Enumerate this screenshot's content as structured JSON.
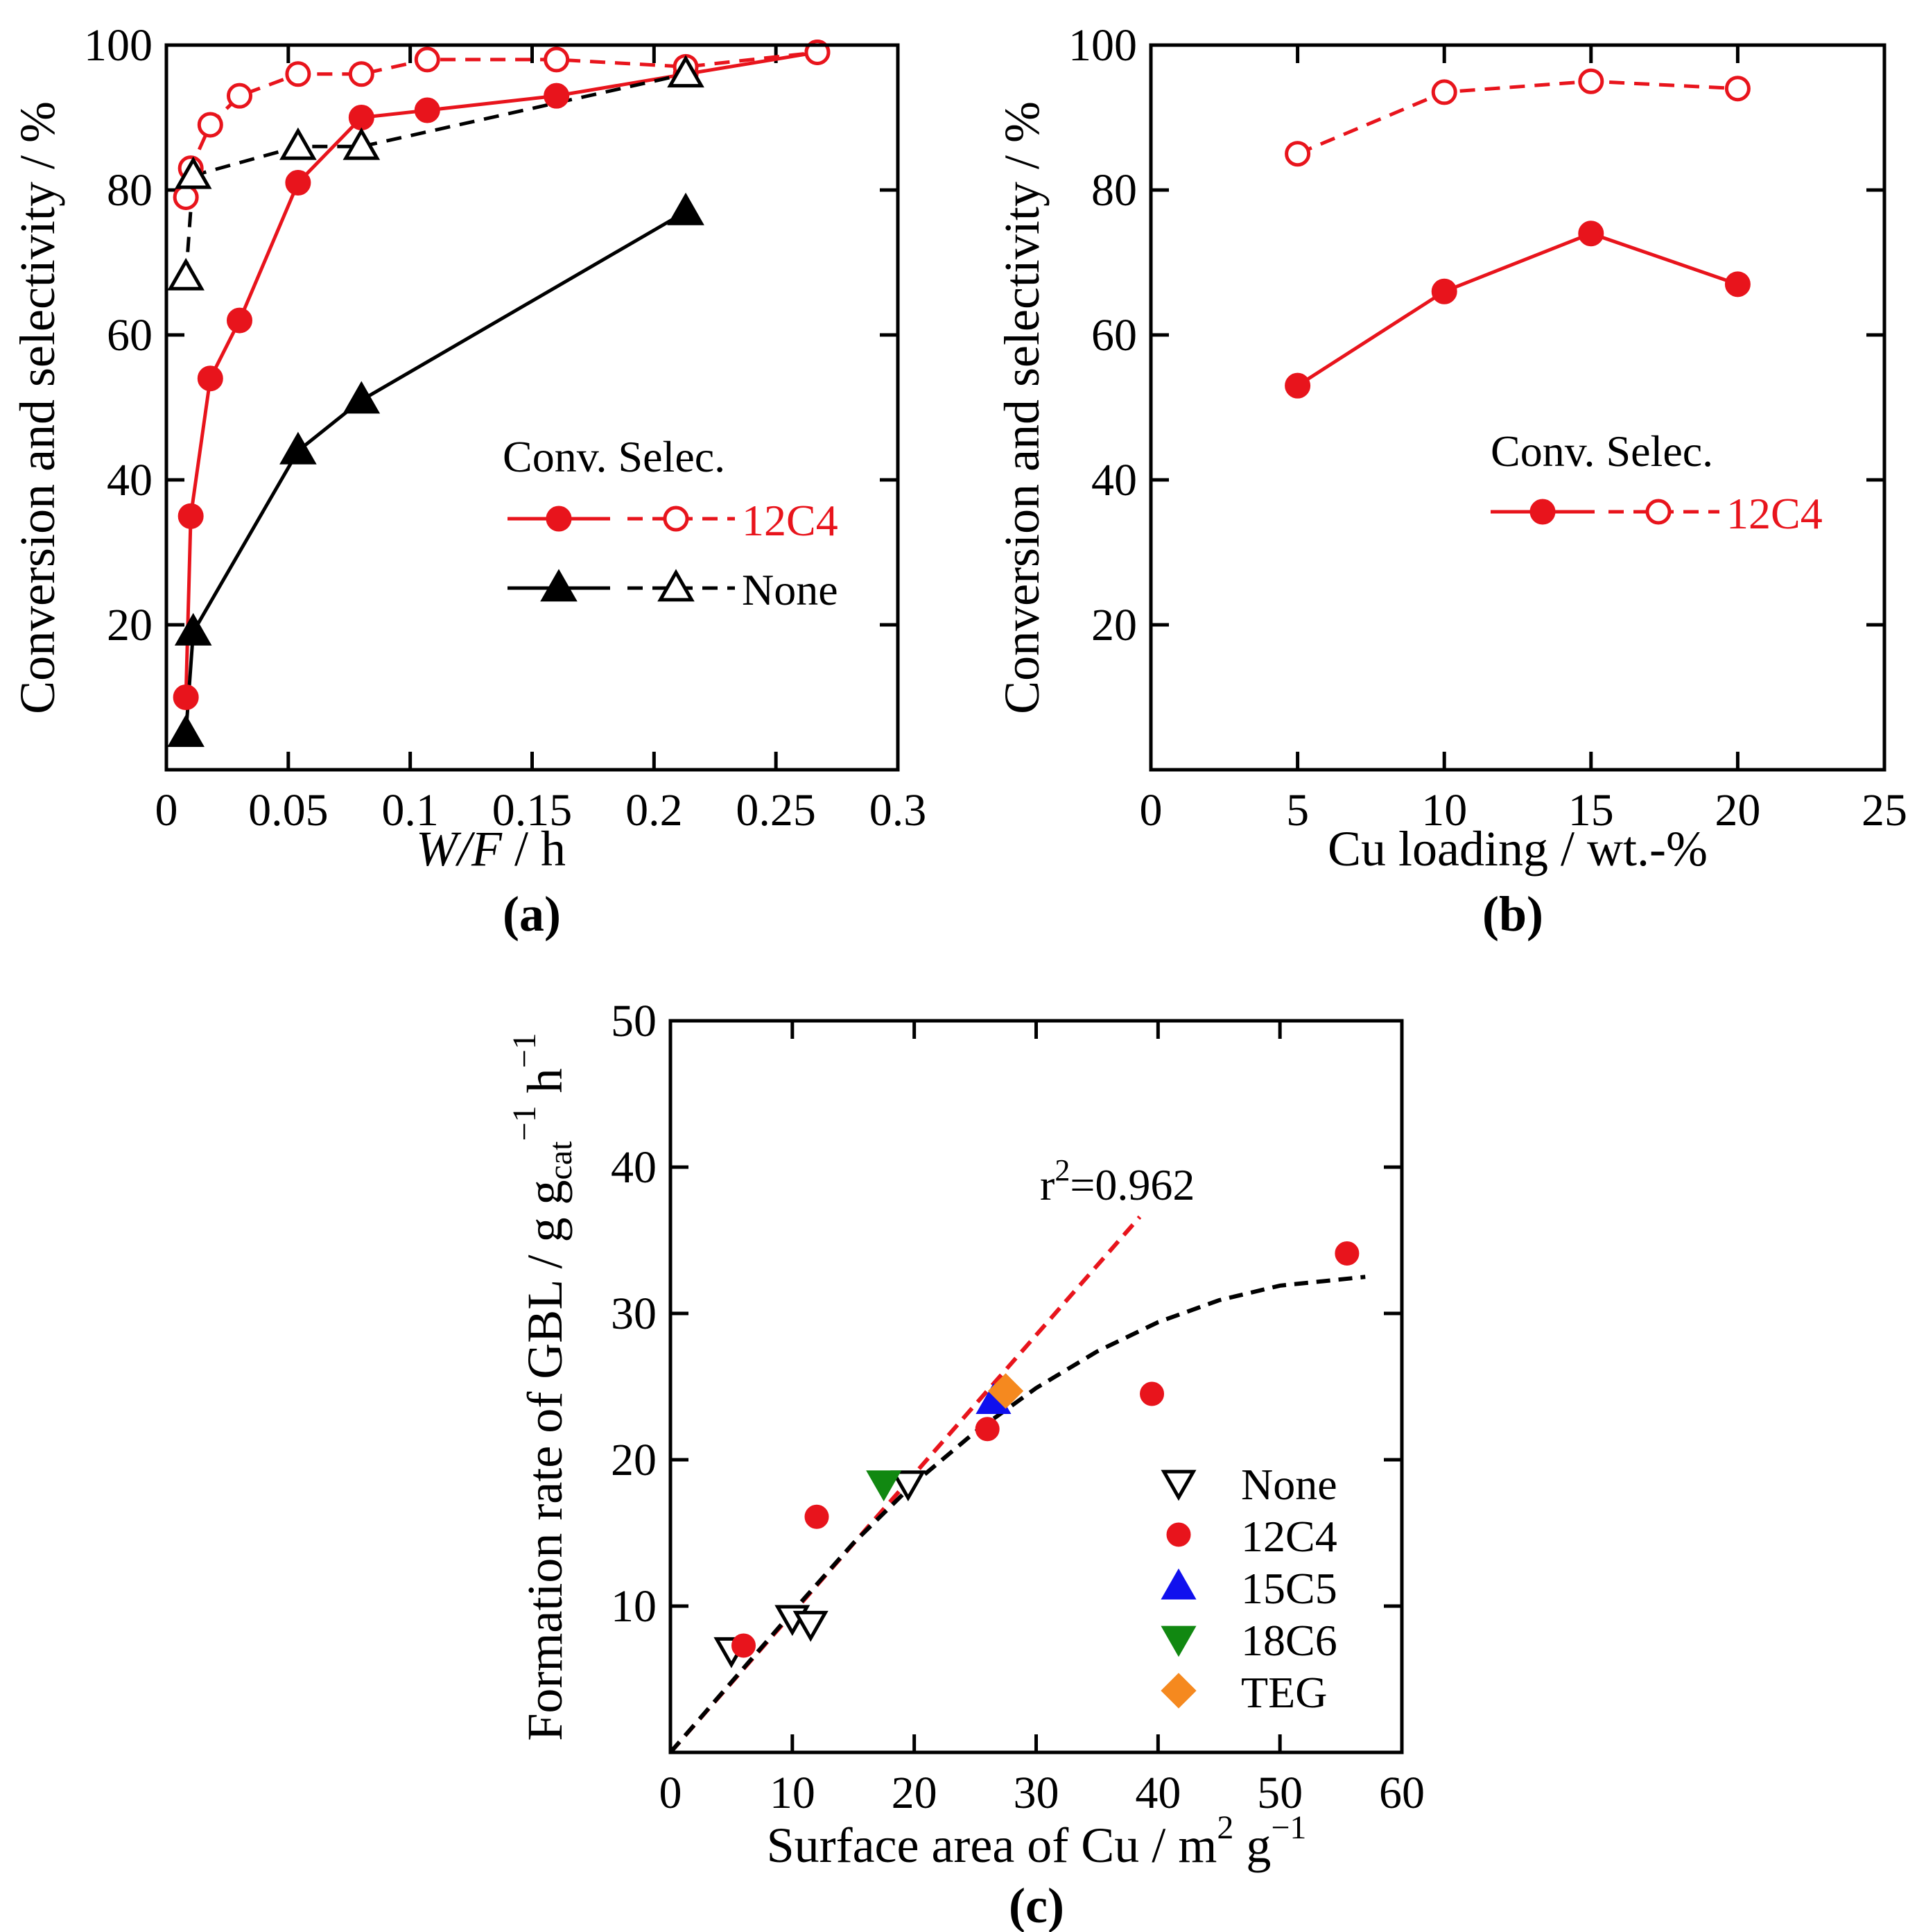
{
  "chart_data": [
    {
      "panel_label": "(a)",
      "type": "line",
      "xlabel": {
        "italic": "W/F",
        "rest": "  / h"
      },
      "ylabel": "Conversion and selectivity / %",
      "xlim": [
        0,
        0.3
      ],
      "ylim": [
        0,
        100
      ],
      "xticks": [
        0,
        0.05,
        0.1,
        0.15,
        0.2,
        0.25,
        0.3
      ],
      "xtick_labels": [
        "0",
        "0.05",
        "0.1",
        "0.15",
        "0.2",
        "0.25",
        "0.3"
      ],
      "yticks": [
        20,
        40,
        60,
        80,
        100
      ],
      "ytick_labels": [
        "20",
        "40",
        "60",
        "80",
        "100"
      ],
      "series": [
        {
          "name": "12C4 conversion",
          "color": "#e8141c",
          "marker": "circle",
          "filled": true,
          "dashed": false,
          "x": [
            0.008,
            0.01,
            0.018,
            0.03,
            0.054,
            0.08,
            0.107,
            0.16,
            0.213,
            0.267
          ],
          "y": [
            10,
            35,
            54,
            62,
            81,
            90,
            91,
            93,
            96,
            99
          ]
        },
        {
          "name": "12C4 selectivity",
          "color": "#e8141c",
          "marker": "circle",
          "filled": false,
          "dashed": true,
          "x": [
            0.008,
            0.01,
            0.018,
            0.03,
            0.054,
            0.08,
            0.107,
            0.16,
            0.213,
            0.267
          ],
          "y": [
            79,
            83,
            89,
            93,
            96,
            96,
            98,
            98,
            97,
            99
          ]
        },
        {
          "name": "None conversion",
          "color": "#000000",
          "marker": "triangle-up",
          "filled": true,
          "dashed": false,
          "x": [
            0.008,
            0.011,
            0.054,
            0.08,
            0.213
          ],
          "y": [
            5,
            19,
            44,
            51,
            77
          ]
        },
        {
          "name": "None selectivity",
          "color": "#000000",
          "marker": "triangle-up",
          "filled": false,
          "dashed": true,
          "x": [
            0.008,
            0.011,
            0.054,
            0.08,
            0.213
          ],
          "y": [
            68,
            82,
            86,
            86,
            96
          ]
        }
      ],
      "legend": {
        "header": "Conv.  Selec.",
        "items": [
          {
            "label": "12C4",
            "color": "#e8141c"
          },
          {
            "label": "None",
            "color": "#000000"
          }
        ]
      }
    },
    {
      "panel_label": "(b)",
      "type": "line",
      "xlabel": "Cu loading / wt.-%",
      "ylabel": "Conversion and selectivity / %",
      "xlim": [
        0,
        25
      ],
      "ylim": [
        0,
        100
      ],
      "xticks": [
        0,
        5,
        10,
        15,
        20,
        25
      ],
      "xtick_labels": [
        "0",
        "5",
        "10",
        "15",
        "20",
        "25"
      ],
      "yticks": [
        20,
        40,
        60,
        80,
        100
      ],
      "ytick_labels": [
        "20",
        "40",
        "60",
        "80",
        "100"
      ],
      "series": [
        {
          "name": "12C4 conversion",
          "color": "#e8141c",
          "marker": "circle",
          "filled": true,
          "dashed": false,
          "x": [
            5,
            10,
            15,
            20
          ],
          "y": [
            53,
            66,
            74,
            67
          ]
        },
        {
          "name": "12C4 selectivity",
          "color": "#e8141c",
          "marker": "circle",
          "filled": false,
          "dashed": true,
          "x": [
            5,
            10,
            15,
            20
          ],
          "y": [
            85,
            93.5,
            95,
            94
          ]
        }
      ],
      "legend": {
        "header": "Conv.  Selec.",
        "items": [
          {
            "label": "12C4",
            "color": "#e8141c"
          }
        ]
      }
    },
    {
      "panel_label": "(c)",
      "type": "scatter",
      "xlabel": {
        "main": "Surface area of Cu / m",
        "sup1": "2",
        "mid": " g",
        "sup2": "−1"
      },
      "ylabel": {
        "main": "Formation rate of GBL / g g",
        "sub": "cat",
        "sup1": "−1",
        "mid": " h",
        "sup2": "−1"
      },
      "xlim": [
        0,
        60
      ],
      "ylim": [
        0,
        50
      ],
      "xticks": [
        0,
        10,
        20,
        30,
        40,
        50,
        60
      ],
      "xtick_labels": [
        "0",
        "10",
        "20",
        "30",
        "40",
        "50",
        "60"
      ],
      "yticks": [
        10,
        20,
        30,
        40,
        50
      ],
      "ytick_labels": [
        "10",
        "20",
        "30",
        "40",
        "50"
      ],
      "annotation": {
        "base": "r",
        "sup": "2",
        "rest": "=0.962"
      },
      "series": [
        {
          "name": "None",
          "color": "#000000",
          "marker": "triangle-down",
          "filled": false,
          "x": [
            5,
            10,
            11.5,
            19.5
          ],
          "y": [
            7,
            9.2,
            8.8,
            18.4
          ]
        },
        {
          "name": "12C4",
          "color": "#e8141c",
          "marker": "circle",
          "filled": true,
          "x": [
            6,
            12,
            26,
            39.5,
            55.5
          ],
          "y": [
            7.3,
            16.1,
            22.1,
            24.5,
            34.1
          ]
        },
        {
          "name": "15C5",
          "color": "#1010ee",
          "marker": "triangle-up",
          "filled": true,
          "x": [
            26.5
          ],
          "y": [
            24
          ]
        },
        {
          "name": "18C6",
          "color": "#118811",
          "marker": "triangle-down",
          "filled": true,
          "x": [
            17.5
          ],
          "y": [
            18.4
          ]
        },
        {
          "name": "TEG",
          "color": "#f5891f",
          "marker": "diamond",
          "filled": true,
          "x": [
            27.5
          ],
          "y": [
            24.7
          ]
        }
      ],
      "fits": [
        {
          "name": "linear fit",
          "color": "#e8141c",
          "dashed": true,
          "x": [
            0,
            38.5
          ],
          "y": [
            0,
            36.6
          ]
        },
        {
          "name": "curve fit",
          "color": "#000000",
          "dashed": true,
          "x": [
            0,
            5,
            10,
            15,
            20,
            25,
            30,
            35,
            40,
            45,
            50,
            57
          ],
          "y": [
            0,
            4.8,
            9.6,
            14.3,
            18.4,
            21.9,
            24.9,
            27.4,
            29.4,
            30.9,
            31.9,
            32.5
          ]
        }
      ],
      "legend": {
        "items": [
          {
            "label": "None",
            "color": "#000000",
            "marker": "triangle-down",
            "filled": false
          },
          {
            "label": "12C4",
            "color": "#e8141c",
            "marker": "circle",
            "filled": true
          },
          {
            "label": "15C5",
            "color": "#1010ee",
            "marker": "triangle-up",
            "filled": true
          },
          {
            "label": "18C6",
            "color": "#118811",
            "marker": "triangle-down",
            "filled": true
          },
          {
            "label": "TEG",
            "color": "#f5891f",
            "marker": "diamond",
            "filled": true
          }
        ]
      }
    }
  ]
}
